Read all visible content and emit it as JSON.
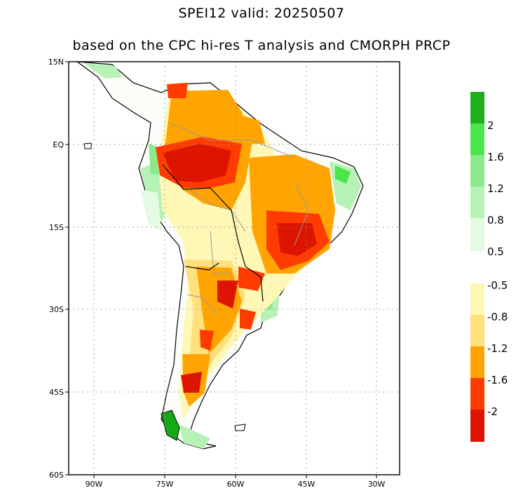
{
  "title": "SPEI12   valid: 20250507",
  "subtitle": "based on the CPC hi-res T analysis and CMORPH PRCP",
  "map": {
    "lat_labels": [
      "15N",
      "EQ",
      "15S",
      "30S",
      "45S",
      "60S"
    ],
    "lon_labels": [
      "90W",
      "75W",
      "60W",
      "45W",
      "30W"
    ],
    "lat_range": [
      -60,
      15
    ],
    "lon_range": [
      -95,
      -25
    ],
    "grid": true
  },
  "legend": {
    "wet": {
      "labels": [
        "2",
        "1.6",
        "1.2",
        "0.8",
        "0.5"
      ],
      "colors": [
        "#1fae1f",
        "#4be64b",
        "#8be88b",
        "#b6f2b6",
        "#e3fbe3"
      ]
    },
    "dry": {
      "labels": [
        "-0.5",
        "-0.8",
        "-1.2",
        "-1.6",
        "-2"
      ],
      "colors": [
        "#fff7b5",
        "#ffe07a",
        "#ffa400",
        "#ff3c00",
        "#dd1500"
      ]
    }
  }
}
